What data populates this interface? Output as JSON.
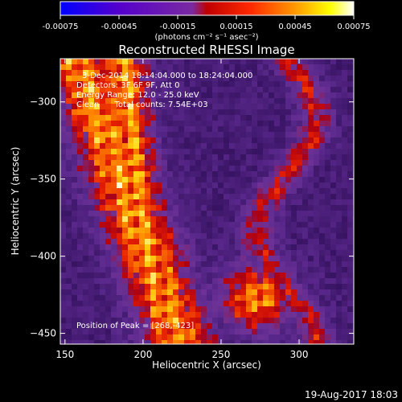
{
  "colorbar": {
    "min": -0.00075,
    "max": 0.00075,
    "tick_labels": [
      "-0.00075",
      "-0.00045",
      "-0.00015",
      "0.00015",
      "0.00045",
      "0.00075"
    ],
    "unit_label": "(photons cm⁻² s⁻¹ asec⁻²)",
    "colors": [
      "#0000ff",
      "#5500cc",
      "#7a2aa0",
      "#ff0000",
      "#ff8800",
      "#ffff00",
      "#ffffff"
    ]
  },
  "plot": {
    "title": "Reconstructed RHESSI Image",
    "annotation_lines": [
      "3-Dec-2014 18:14:04.000 to 18:24:04.000",
      "Detectors: 3F 6F 9F, Att 0",
      "Energy Range: 12.0 - 25.0 keV",
      "Clean      Total counts: 7.54E+03"
    ],
    "peak_label": "Position of Peak = [268,-423]",
    "footer_date": "19-Aug-2017 18:03"
  },
  "chart_data": {
    "type": "heatmap",
    "title": "Reconstructed RHESSI Image",
    "xlabel": "Heliocentric X (arcsec)",
    "ylabel": "Heliocentric Y (arcsec)",
    "xlim": [
      147,
      335
    ],
    "ylim": [
      -457,
      -272
    ],
    "x_ticks": [
      150,
      200,
      250,
      300
    ],
    "y_ticks": [
      -300,
      -350,
      -400,
      -450
    ],
    "colorbar_range": [
      -0.00075,
      0.00075
    ],
    "peak_position": [
      268,
      -423
    ],
    "grid": false
  }
}
